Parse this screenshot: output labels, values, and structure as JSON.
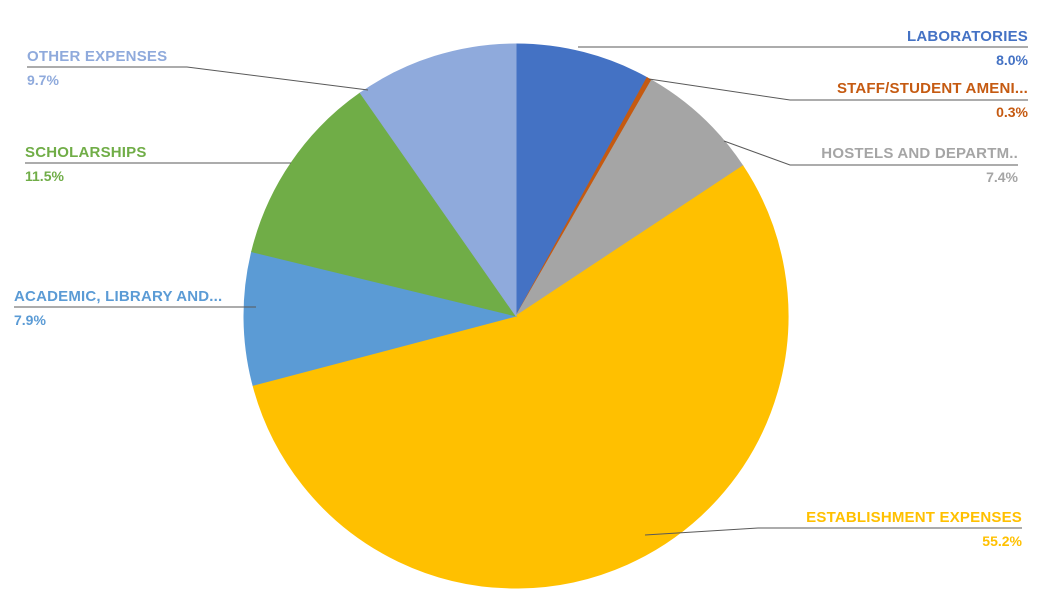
{
  "chart_data": {
    "type": "pie",
    "title": "",
    "legend": "none",
    "direction": "clockwise",
    "start_angle_deg": 0,
    "label_style": "outside callout labels with leader lines: category name above percentage",
    "leader_line_color": "#595959",
    "slices": [
      {
        "label": "LABORATORIES",
        "pct_label": "8.0%",
        "value": 8.0,
        "color": "#4472C4"
      },
      {
        "label": "STAFF/STUDENT AMENI...",
        "pct_label": "0.3%",
        "value": 0.3,
        "color": "#C55A11"
      },
      {
        "label": "HOSTELS AND DEPARTM..",
        "pct_label": "7.4%",
        "value": 7.4,
        "color": "#A5A5A5"
      },
      {
        "label": "ESTABLISHMENT EXPENSES",
        "pct_label": "55.2%",
        "value": 55.2,
        "color": "#FFC000"
      },
      {
        "label": "ACADEMIC, LIBRARY AND...",
        "pct_label": "7.9%",
        "value": 7.9,
        "color": "#5B9BD5"
      },
      {
        "label": "SCHOLARSHIPS",
        "pct_label": "11.5%",
        "value": 11.5,
        "color": "#70AD47"
      },
      {
        "label": "OTHER EXPENSES",
        "pct_label": "9.7%",
        "value": 9.7,
        "color": "#8FAADC"
      }
    ]
  }
}
